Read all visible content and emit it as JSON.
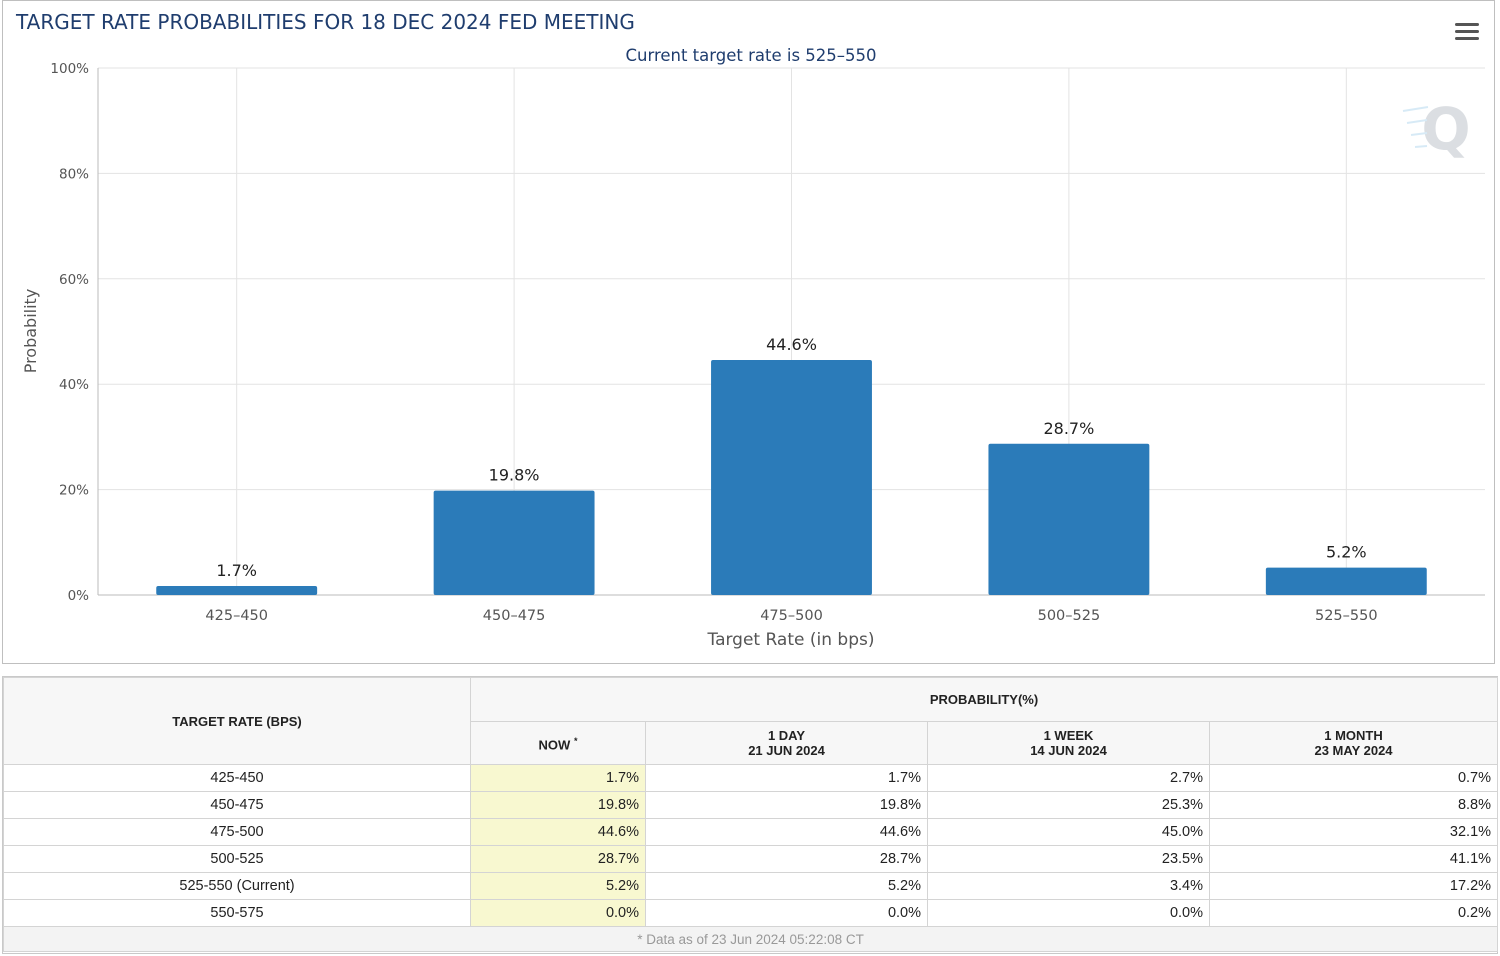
{
  "chart_data": {
    "type": "bar",
    "title": "TARGET RATE PROBABILITIES FOR 18 DEC 2024 FED MEETING",
    "subtitle": "Current target rate is 525–550",
    "xlabel": "Target Rate (in bps)",
    "ylabel": "Probability",
    "categories": [
      "425–450",
      "450–475",
      "475–500",
      "500–525",
      "525–550"
    ],
    "values": [
      1.7,
      19.8,
      44.6,
      28.7,
      5.2
    ],
    "data_labels": [
      "1.7%",
      "19.8%",
      "44.6%",
      "28.7%",
      "5.2%"
    ],
    "yticks": [
      0,
      20,
      40,
      60,
      80,
      100
    ],
    "ytick_labels": [
      "0%",
      "20%",
      "40%",
      "60%",
      "80%",
      "100%"
    ],
    "ylim": [
      0,
      100
    ],
    "grid": true,
    "bar_color": "#2b7bb9"
  },
  "colors": {
    "title": "#1f3d6e",
    "bar": "#2b7bb9",
    "now_column": "#f8f8d0"
  },
  "icons": {
    "menu": "hamburger-menu-icon",
    "watermark": "q-logo-icon"
  },
  "table": {
    "rate_header": "TARGET RATE (BPS)",
    "prob_header": "PROBABILITY(%)",
    "columns": [
      {
        "line1": "NOW",
        "line2": "",
        "mark": "*"
      },
      {
        "line1": "1 DAY",
        "line2": "21 JUN 2024",
        "mark": ""
      },
      {
        "line1": "1 WEEK",
        "line2": "14 JUN 2024",
        "mark": ""
      },
      {
        "line1": "1 MONTH",
        "line2": "23 MAY 2024",
        "mark": ""
      }
    ],
    "rows": [
      {
        "rate": "425-450",
        "now": "1.7%",
        "day": "1.7%",
        "week": "2.7%",
        "month": "0.7%"
      },
      {
        "rate": "450-475",
        "now": "19.8%",
        "day": "19.8%",
        "week": "25.3%",
        "month": "8.8%"
      },
      {
        "rate": "475-500",
        "now": "44.6%",
        "day": "44.6%",
        "week": "45.0%",
        "month": "32.1%"
      },
      {
        "rate": "500-525",
        "now": "28.7%",
        "day": "28.7%",
        "week": "23.5%",
        "month": "41.1%"
      },
      {
        "rate": "525-550 (Current)",
        "now": "5.2%",
        "day": "5.2%",
        "week": "3.4%",
        "month": "17.2%"
      },
      {
        "rate": "550-575",
        "now": "0.0%",
        "day": "0.0%",
        "week": "0.0%",
        "month": "0.2%"
      }
    ],
    "footnote": "* Data as of 23 Jun 2024 05:22:08 CT"
  }
}
